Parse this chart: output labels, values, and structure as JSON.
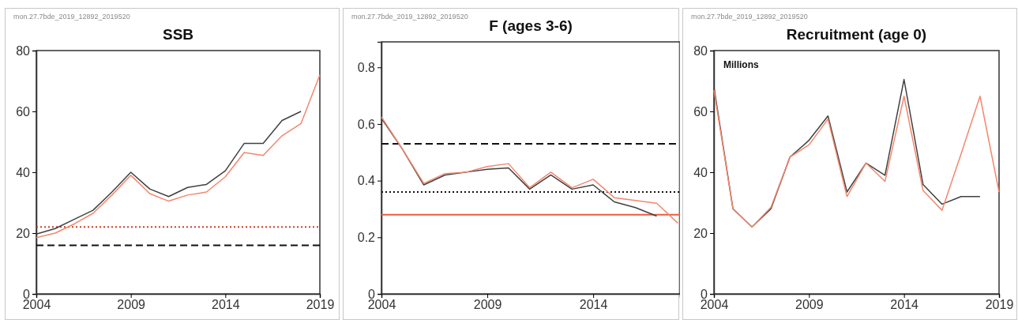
{
  "chart_data": [
    {
      "type": "line",
      "title": "SSB",
      "annotations": [
        "mon.27.7bde_2019_12892_2019520"
      ],
      "xlim": [
        2004,
        2019
      ],
      "xticks": [
        2004,
        2009,
        2014,
        2019
      ],
      "ylim": [
        0,
        80
      ],
      "yticks": [
        0,
        20,
        40,
        60,
        80
      ],
      "series": [
        {
          "color": "#404040",
          "x": [
            2004,
            2005,
            2006,
            2007,
            2008,
            2009,
            2010,
            2011,
            2012,
            2013,
            2014,
            2015,
            2016,
            2017,
            2018
          ],
          "values": [
            19.7,
            21.5,
            24.5,
            27.5,
            33.5,
            40,
            34.5,
            32,
            35,
            36,
            40.5,
            49.5,
            49.5,
            57,
            60
          ]
        },
        {
          "color": "#f4866c",
          "x": [
            2004,
            2005,
            2006,
            2007,
            2008,
            2009,
            2010,
            2011,
            2012,
            2013,
            2014,
            2015,
            2016,
            2017,
            2018,
            2019
          ],
          "values": [
            18.5,
            20,
            23,
            26.5,
            32.5,
            39,
            33,
            30.5,
            32.5,
            33.5,
            38.5,
            46.5,
            45.5,
            52,
            56,
            72
          ]
        }
      ],
      "ref_lines": [
        {
          "axis": "y",
          "value": 22,
          "color": "#c8402a",
          "line_style": "dotted"
        },
        {
          "axis": "y",
          "value": 16,
          "color": "#111111",
          "line_style": "dashed"
        }
      ]
    },
    {
      "type": "line",
      "title": "F (ages 3-6)",
      "annotations": [
        "mon.27.7bde_2019_12892_2019520"
      ],
      "xlim": [
        2004,
        2018.1
      ],
      "xticks": [
        2004,
        2009,
        2014
      ],
      "ylim": [
        0,
        0.89
      ],
      "yticks": [
        0,
        {
          "value": 0.2,
          "label": "0.2"
        },
        {
          "value": 0.4,
          "label": "0.4"
        },
        {
          "value": 0.6,
          "label": "0.6"
        },
        {
          "value": 0.8,
          "label": "0.8"
        }
      ],
      "series": [
        {
          "color": "#404040",
          "x": [
            2004,
            2005,
            2006,
            2007,
            2008,
            2009,
            2010,
            2011,
            2012,
            2013,
            2014,
            2015,
            2016,
            2017
          ],
          "values": [
            0.62,
            0.51,
            0.385,
            0.42,
            0.43,
            0.44,
            0.445,
            0.37,
            0.42,
            0.37,
            0.385,
            0.325,
            0.305,
            0.275
          ]
        },
        {
          "color": "#f4866c",
          "x": [
            2004,
            2005,
            2006,
            2007,
            2008,
            2009,
            2010,
            2011,
            2012,
            2013,
            2014,
            2015,
            2016,
            2017,
            2018
          ],
          "values": [
            0.625,
            0.51,
            0.39,
            0.425,
            0.43,
            0.45,
            0.46,
            0.375,
            0.43,
            0.375,
            0.405,
            0.34,
            0.33,
            0.32,
            0.25
          ]
        }
      ],
      "ref_lines": [
        {
          "axis": "y",
          "value": 0.53,
          "color": "#111111",
          "line_style": "dashed"
        },
        {
          "axis": "y",
          "value": 0.36,
          "color": "#111111",
          "line_style": "dotted"
        },
        {
          "axis": "y",
          "value": 0.28,
          "color": "#f05a3c",
          "line_style": "solid"
        }
      ]
    },
    {
      "type": "line",
      "title": "Recruitment (age 0)",
      "annotations": [
        "mon.27.7bde_2019_12892_2019520",
        "Millions"
      ],
      "xlim": [
        2004,
        2019
      ],
      "xticks": [
        2004,
        2009,
        2014,
        2019
      ],
      "ylim": [
        0,
        80
      ],
      "yticks": [
        0,
        20,
        40,
        60,
        80
      ],
      "series": [
        {
          "color": "#404040",
          "x": [
            2004,
            2005,
            2006,
            2007,
            2008,
            2009,
            2010,
            2011,
            2012,
            2013,
            2014,
            2015,
            2016,
            2017,
            2018
          ],
          "values": [
            68,
            28,
            22,
            28,
            45,
            50.5,
            58.5,
            33.5,
            43,
            39,
            70.5,
            36,
            29.5,
            32,
            32
          ]
        },
        {
          "color": "#f4866c",
          "x": [
            2004,
            2005,
            2006,
            2007,
            2008,
            2009,
            2010,
            2011,
            2012,
            2013,
            2014,
            2015,
            2016,
            2017,
            2018,
            2019
          ],
          "values": [
            67,
            28,
            22,
            28.5,
            45,
            49,
            57.5,
            32,
            43,
            37,
            65,
            34,
            27.5,
            46,
            65,
            33.5
          ]
        }
      ]
    }
  ]
}
